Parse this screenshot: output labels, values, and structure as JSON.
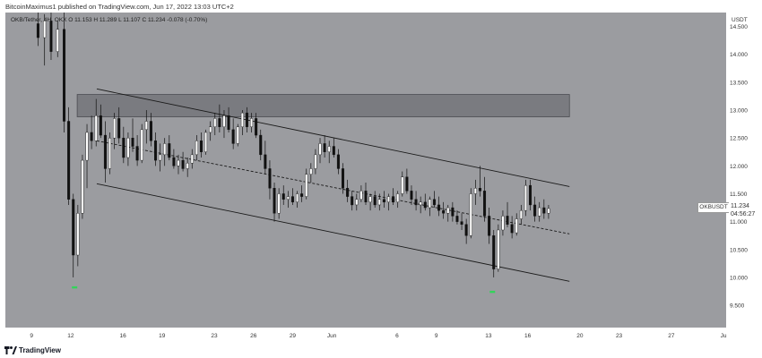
{
  "header": {
    "publisher_line": "BitcoinMaximus1 published on TradingView.com, Jun 17, 2022 13:03 UTC+2",
    "symbol_line": "OKB/Tether, 4H, OKX  O 11.153  H 11.289  L 11.107  C 11.234  -0.078 (-0.70%)"
  },
  "footer": {
    "brand": "TradingView"
  },
  "colors": {
    "background": "#9b9ca0",
    "candle": "#ffffff",
    "candle_bear": "#111111",
    "channel": "#1a1a1a",
    "zone": "#6f7075",
    "signal": "#33d45a"
  },
  "price_panel": {
    "currency": "USDT",
    "symbol_label": "OKBUSDT",
    "last_price": "11.234",
    "countdown": "04:56:27"
  },
  "chart_data": {
    "type": "candlestick",
    "title": "",
    "xlabel": "",
    "ylabel": "",
    "ylim": [
      9.1,
      14.75
    ],
    "grid": false,
    "y_ticks": [
      "9.500",
      "10.000",
      "10.500",
      "11.000",
      "11.500",
      "12.000",
      "12.500",
      "13.000",
      "13.500",
      "14.000",
      "14.500"
    ],
    "x_ticks": [
      {
        "label": "9",
        "day": 9
      },
      {
        "label": "12",
        "day": 12
      },
      {
        "label": "16",
        "day": 16
      },
      {
        "label": "19",
        "day": 19
      },
      {
        "label": "23",
        "day": 23
      },
      {
        "label": "26",
        "day": 26
      },
      {
        "label": "29",
        "day": 29
      },
      {
        "label": "Jun",
        "day": 32
      },
      {
        "label": "6",
        "day": 37
      },
      {
        "label": "9",
        "day": 40
      },
      {
        "label": "13",
        "day": 44
      },
      {
        "label": "16",
        "day": 47
      },
      {
        "label": "20",
        "day": 51
      },
      {
        "label": "23",
        "day": 54
      },
      {
        "label": "27",
        "day": 58
      },
      {
        "label": "Ju",
        "day": 62
      }
    ],
    "resistance_zone": {
      "low": 12.88,
      "high": 13.28,
      "from_day": 12.5,
      "to_day": 50.2
    },
    "channel": {
      "upper": [
        {
          "day": 14.0,
          "price": 13.38
        },
        {
          "day": 50.2,
          "price": 11.63
        }
      ],
      "middle": [
        {
          "day": 14.0,
          "price": 12.45
        },
        {
          "day": 50.2,
          "price": 10.78
        }
      ],
      "lower": [
        {
          "day": 14.0,
          "price": 11.68
        },
        {
          "day": 50.2,
          "price": 9.93
        }
      ]
    },
    "signals": [
      {
        "day": 12.3,
        "price": 9.82
      },
      {
        "day": 44.3,
        "price": 9.74
      }
    ],
    "candles": [
      {
        "day": 9.5,
        "o": 14.55,
        "h": 14.75,
        "l": 14.15,
        "c": 14.3
      },
      {
        "day": 10.0,
        "o": 14.3,
        "h": 14.72,
        "l": 13.8,
        "c": 14.6
      },
      {
        "day": 10.5,
        "o": 14.6,
        "h": 14.75,
        "l": 13.9,
        "c": 14.05
      },
      {
        "day": 11.0,
        "o": 14.05,
        "h": 14.6,
        "l": 13.95,
        "c": 14.45
      },
      {
        "day": 11.5,
        "o": 14.45,
        "h": 14.75,
        "l": 12.6,
        "c": 12.8
      },
      {
        "day": 11.85,
        "o": 12.8,
        "h": 13.05,
        "l": 11.3,
        "c": 11.4
      },
      {
        "day": 12.2,
        "o": 11.4,
        "h": 11.5,
        "l": 10.0,
        "c": 10.4
      },
      {
        "day": 12.55,
        "o": 10.4,
        "h": 11.3,
        "l": 10.2,
        "c": 11.15
      },
      {
        "day": 12.9,
        "o": 11.15,
        "h": 12.2,
        "l": 11.05,
        "c": 12.1
      },
      {
        "day": 13.25,
        "o": 12.1,
        "h": 12.75,
        "l": 11.6,
        "c": 12.6
      },
      {
        "day": 13.6,
        "o": 12.6,
        "h": 12.9,
        "l": 12.3,
        "c": 12.45
      },
      {
        "day": 13.95,
        "o": 12.45,
        "h": 13.2,
        "l": 12.35,
        "c": 12.9
      },
      {
        "day": 14.3,
        "o": 12.9,
        "h": 13.1,
        "l": 12.5,
        "c": 12.55
      },
      {
        "day": 14.65,
        "o": 12.55,
        "h": 12.8,
        "l": 11.7,
        "c": 11.95
      },
      {
        "day": 15.0,
        "o": 11.95,
        "h": 12.6,
        "l": 11.85,
        "c": 12.5
      },
      {
        "day": 15.35,
        "o": 12.5,
        "h": 12.95,
        "l": 12.3,
        "c": 12.85
      },
      {
        "day": 15.7,
        "o": 12.85,
        "h": 13.05,
        "l": 12.4,
        "c": 12.5
      },
      {
        "day": 16.05,
        "o": 12.5,
        "h": 12.7,
        "l": 12.05,
        "c": 12.15
      },
      {
        "day": 16.4,
        "o": 12.15,
        "h": 12.6,
        "l": 12.0,
        "c": 12.5
      },
      {
        "day": 16.75,
        "o": 12.5,
        "h": 12.85,
        "l": 12.25,
        "c": 12.35
      },
      {
        "day": 17.1,
        "o": 12.35,
        "h": 12.55,
        "l": 12.0,
        "c": 12.1
      },
      {
        "day": 17.45,
        "o": 12.1,
        "h": 12.75,
        "l": 12.05,
        "c": 12.65
      },
      {
        "day": 17.8,
        "o": 12.65,
        "h": 13.0,
        "l": 12.4,
        "c": 12.8
      },
      {
        "day": 18.15,
        "o": 12.8,
        "h": 12.95,
        "l": 12.35,
        "c": 12.45
      },
      {
        "day": 18.5,
        "o": 12.45,
        "h": 12.6,
        "l": 12.0,
        "c": 12.1
      },
      {
        "day": 18.85,
        "o": 12.1,
        "h": 12.4,
        "l": 11.9,
        "c": 12.2
      },
      {
        "day": 19.2,
        "o": 12.2,
        "h": 12.5,
        "l": 12.0,
        "c": 12.4
      },
      {
        "day": 19.55,
        "o": 12.4,
        "h": 12.55,
        "l": 12.1,
        "c": 12.15
      },
      {
        "day": 19.9,
        "o": 12.15,
        "h": 12.3,
        "l": 11.95,
        "c": 12.0
      },
      {
        "day": 20.25,
        "o": 12.0,
        "h": 12.2,
        "l": 11.85,
        "c": 12.1
      },
      {
        "day": 20.6,
        "o": 12.1,
        "h": 12.25,
        "l": 11.9,
        "c": 11.95
      },
      {
        "day": 20.95,
        "o": 11.95,
        "h": 12.15,
        "l": 11.8,
        "c": 12.05
      },
      {
        "day": 21.3,
        "o": 12.05,
        "h": 12.3,
        "l": 11.95,
        "c": 12.2
      },
      {
        "day": 21.65,
        "o": 12.2,
        "h": 12.55,
        "l": 12.1,
        "c": 12.45
      },
      {
        "day": 22.0,
        "o": 12.45,
        "h": 12.6,
        "l": 12.15,
        "c": 12.25
      },
      {
        "day": 22.35,
        "o": 12.25,
        "h": 12.65,
        "l": 12.2,
        "c": 12.6
      },
      {
        "day": 22.7,
        "o": 12.6,
        "h": 12.8,
        "l": 12.45,
        "c": 12.7
      },
      {
        "day": 23.05,
        "o": 12.7,
        "h": 12.95,
        "l": 12.55,
        "c": 12.85
      },
      {
        "day": 23.4,
        "o": 12.85,
        "h": 13.1,
        "l": 12.6,
        "c": 12.7
      },
      {
        "day": 23.75,
        "o": 12.7,
        "h": 13.0,
        "l": 12.5,
        "c": 12.9
      },
      {
        "day": 24.1,
        "o": 12.9,
        "h": 13.05,
        "l": 12.6,
        "c": 12.65
      },
      {
        "day": 24.45,
        "o": 12.65,
        "h": 12.85,
        "l": 12.3,
        "c": 12.4
      },
      {
        "day": 24.8,
        "o": 12.4,
        "h": 12.75,
        "l": 12.35,
        "c": 12.7
      },
      {
        "day": 25.15,
        "o": 12.7,
        "h": 13.0,
        "l": 12.55,
        "c": 12.95
      },
      {
        "day": 25.5,
        "o": 12.95,
        "h": 13.05,
        "l": 12.6,
        "c": 12.7
      },
      {
        "day": 25.85,
        "o": 12.7,
        "h": 12.95,
        "l": 12.6,
        "c": 12.85
      },
      {
        "day": 26.2,
        "o": 12.85,
        "h": 12.95,
        "l": 12.5,
        "c": 12.55
      },
      {
        "day": 26.55,
        "o": 12.55,
        "h": 12.65,
        "l": 12.1,
        "c": 12.2
      },
      {
        "day": 26.9,
        "o": 12.2,
        "h": 12.45,
        "l": 11.85,
        "c": 11.95
      },
      {
        "day": 27.25,
        "o": 11.95,
        "h": 12.1,
        "l": 11.4,
        "c": 11.6
      },
      {
        "day": 27.6,
        "o": 11.6,
        "h": 11.7,
        "l": 11.0,
        "c": 11.15
      },
      {
        "day": 27.95,
        "o": 11.15,
        "h": 11.6,
        "l": 11.05,
        "c": 11.5
      },
      {
        "day": 28.3,
        "o": 11.5,
        "h": 11.65,
        "l": 11.3,
        "c": 11.4
      },
      {
        "day": 28.65,
        "o": 11.4,
        "h": 11.55,
        "l": 11.25,
        "c": 11.45
      },
      {
        "day": 29.0,
        "o": 11.45,
        "h": 11.6,
        "l": 11.3,
        "c": 11.35
      },
      {
        "day": 29.35,
        "o": 11.35,
        "h": 11.55,
        "l": 11.25,
        "c": 11.5
      },
      {
        "day": 29.7,
        "o": 11.5,
        "h": 11.65,
        "l": 11.35,
        "c": 11.45
      },
      {
        "day": 30.05,
        "o": 11.45,
        "h": 11.95,
        "l": 11.4,
        "c": 11.85
      },
      {
        "day": 30.4,
        "o": 11.85,
        "h": 12.05,
        "l": 11.7,
        "c": 11.95
      },
      {
        "day": 30.75,
        "o": 11.95,
        "h": 12.3,
        "l": 11.85,
        "c": 12.2
      },
      {
        "day": 31.1,
        "o": 12.2,
        "h": 12.5,
        "l": 12.05,
        "c": 12.4
      },
      {
        "day": 31.45,
        "o": 12.4,
        "h": 12.55,
        "l": 12.15,
        "c": 12.25
      },
      {
        "day": 31.8,
        "o": 12.25,
        "h": 12.45,
        "l": 12.05,
        "c": 12.35
      },
      {
        "day": 32.15,
        "o": 12.35,
        "h": 12.5,
        "l": 12.15,
        "c": 12.2
      },
      {
        "day": 32.5,
        "o": 12.2,
        "h": 12.3,
        "l": 11.85,
        "c": 11.95
      },
      {
        "day": 32.85,
        "o": 11.95,
        "h": 12.05,
        "l": 11.5,
        "c": 11.6
      },
      {
        "day": 33.2,
        "o": 11.6,
        "h": 11.75,
        "l": 11.35,
        "c": 11.45
      },
      {
        "day": 33.55,
        "o": 11.45,
        "h": 11.55,
        "l": 11.2,
        "c": 11.3
      },
      {
        "day": 33.9,
        "o": 11.3,
        "h": 11.5,
        "l": 11.2,
        "c": 11.4
      },
      {
        "day": 34.25,
        "o": 11.4,
        "h": 11.65,
        "l": 11.35,
        "c": 11.55
      },
      {
        "day": 34.6,
        "o": 11.55,
        "h": 11.7,
        "l": 11.3,
        "c": 11.35
      },
      {
        "day": 34.95,
        "o": 11.35,
        "h": 11.5,
        "l": 11.2,
        "c": 11.45
      },
      {
        "day": 35.3,
        "o": 11.45,
        "h": 11.55,
        "l": 11.25,
        "c": 11.3
      },
      {
        "day": 35.65,
        "o": 11.3,
        "h": 11.5,
        "l": 11.2,
        "c": 11.4
      },
      {
        "day": 36.0,
        "o": 11.4,
        "h": 11.55,
        "l": 11.25,
        "c": 11.35
      },
      {
        "day": 36.35,
        "o": 11.35,
        "h": 11.5,
        "l": 11.2,
        "c": 11.45
      },
      {
        "day": 36.7,
        "o": 11.45,
        "h": 11.6,
        "l": 11.3,
        "c": 11.35
      },
      {
        "day": 37.05,
        "o": 11.35,
        "h": 11.55,
        "l": 11.25,
        "c": 11.5
      },
      {
        "day": 37.4,
        "o": 11.5,
        "h": 11.9,
        "l": 11.45,
        "c": 11.8
      },
      {
        "day": 37.75,
        "o": 11.8,
        "h": 11.95,
        "l": 11.5,
        "c": 11.55
      },
      {
        "day": 38.1,
        "o": 11.55,
        "h": 11.65,
        "l": 11.3,
        "c": 11.4
      },
      {
        "day": 38.45,
        "o": 11.4,
        "h": 11.55,
        "l": 11.2,
        "c": 11.3
      },
      {
        "day": 38.8,
        "o": 11.3,
        "h": 11.45,
        "l": 11.15,
        "c": 11.35
      },
      {
        "day": 39.15,
        "o": 11.35,
        "h": 11.5,
        "l": 11.2,
        "c": 11.25
      },
      {
        "day": 39.5,
        "o": 11.25,
        "h": 11.45,
        "l": 11.1,
        "c": 11.4
      },
      {
        "day": 39.85,
        "o": 11.4,
        "h": 11.55,
        "l": 11.25,
        "c": 11.3
      },
      {
        "day": 40.2,
        "o": 11.3,
        "h": 11.45,
        "l": 11.1,
        "c": 11.2
      },
      {
        "day": 40.55,
        "o": 11.2,
        "h": 11.35,
        "l": 11.05,
        "c": 11.15
      },
      {
        "day": 40.9,
        "o": 11.15,
        "h": 11.3,
        "l": 11.0,
        "c": 11.25
      },
      {
        "day": 41.25,
        "o": 11.25,
        "h": 11.35,
        "l": 11.0,
        "c": 11.1
      },
      {
        "day": 41.6,
        "o": 11.1,
        "h": 11.2,
        "l": 10.95,
        "c": 11.0
      },
      {
        "day": 41.95,
        "o": 11.0,
        "h": 11.15,
        "l": 10.85,
        "c": 10.95
      },
      {
        "day": 42.3,
        "o": 10.95,
        "h": 11.05,
        "l": 10.6,
        "c": 10.75
      },
      {
        "day": 42.65,
        "o": 10.75,
        "h": 11.6,
        "l": 10.7,
        "c": 11.5
      },
      {
        "day": 43.0,
        "o": 11.5,
        "h": 11.75,
        "l": 11.3,
        "c": 11.6
      },
      {
        "day": 43.35,
        "o": 11.6,
        "h": 12.0,
        "l": 11.45,
        "c": 11.55
      },
      {
        "day": 43.7,
        "o": 11.55,
        "h": 11.8,
        "l": 11.0,
        "c": 11.1
      },
      {
        "day": 44.05,
        "o": 11.1,
        "h": 11.25,
        "l": 10.6,
        "c": 10.75
      },
      {
        "day": 44.4,
        "o": 10.75,
        "h": 10.85,
        "l": 10.0,
        "c": 10.15
      },
      {
        "day": 44.75,
        "o": 10.15,
        "h": 10.95,
        "l": 10.1,
        "c": 10.85
      },
      {
        "day": 45.1,
        "o": 10.85,
        "h": 11.2,
        "l": 10.75,
        "c": 11.1
      },
      {
        "day": 45.45,
        "o": 11.1,
        "h": 11.35,
        "l": 10.9,
        "c": 10.95
      },
      {
        "day": 45.8,
        "o": 10.95,
        "h": 11.1,
        "l": 10.7,
        "c": 10.8
      },
      {
        "day": 46.15,
        "o": 10.8,
        "h": 11.15,
        "l": 10.75,
        "c": 11.05
      },
      {
        "day": 46.5,
        "o": 11.05,
        "h": 11.3,
        "l": 10.95,
        "c": 11.2
      },
      {
        "day": 46.85,
        "o": 11.2,
        "h": 11.75,
        "l": 11.1,
        "c": 11.65
      },
      {
        "day": 47.2,
        "o": 11.65,
        "h": 11.75,
        "l": 11.2,
        "c": 11.3
      },
      {
        "day": 47.55,
        "o": 11.3,
        "h": 11.45,
        "l": 11.0,
        "c": 11.1
      },
      {
        "day": 47.9,
        "o": 11.1,
        "h": 11.35,
        "l": 11.0,
        "c": 11.25
      },
      {
        "day": 48.25,
        "o": 11.25,
        "h": 11.4,
        "l": 11.05,
        "c": 11.15
      },
      {
        "day": 48.6,
        "o": 11.15,
        "h": 11.3,
        "l": 11.05,
        "c": 11.234
      }
    ]
  }
}
